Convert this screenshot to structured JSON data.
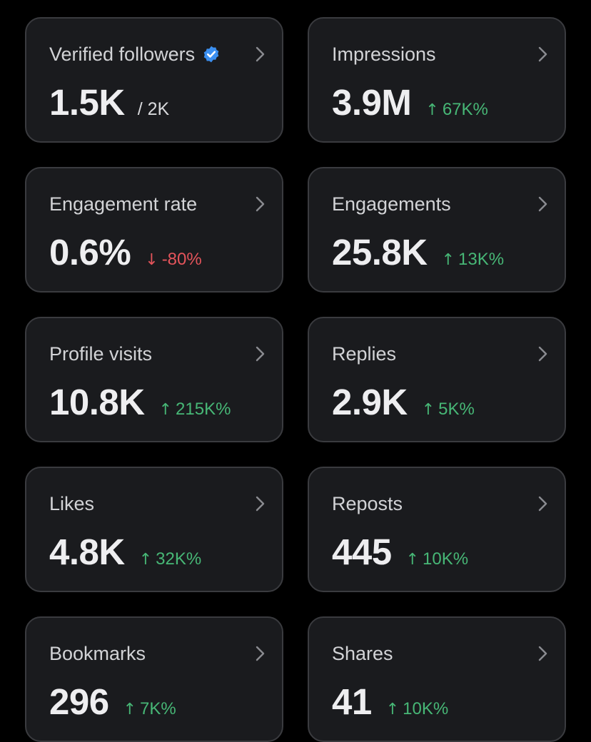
{
  "colors": {
    "background": "#000000",
    "card": "#1a1b1e",
    "card_border": "#3a3b3f",
    "positive": "#47b776",
    "negative": "#e4545b",
    "verified": "#3b8ff0"
  },
  "cards": [
    {
      "label": "Verified followers",
      "value": "1.5K",
      "sub": "/ 2K",
      "icon": "verified-badge-icon"
    },
    {
      "label": "Impressions",
      "value": "3.9M",
      "change": "67K%",
      "direction": "up",
      "arrow": "↑"
    },
    {
      "label": "Engagement rate",
      "value": "0.6%",
      "change": "-80%",
      "direction": "down",
      "arrow": "↓"
    },
    {
      "label": "Engagements",
      "value": "25.8K",
      "change": "13K%",
      "direction": "up",
      "arrow": "↑"
    },
    {
      "label": "Profile visits",
      "value": "10.8K",
      "change": "215K%",
      "direction": "up",
      "arrow": "↑"
    },
    {
      "label": "Replies",
      "value": "2.9K",
      "change": "5K%",
      "direction": "up",
      "arrow": "↑"
    },
    {
      "label": "Likes",
      "value": "4.8K",
      "change": "32K%",
      "direction": "up",
      "arrow": "↑"
    },
    {
      "label": "Reposts",
      "value": "445",
      "change": "10K%",
      "direction": "up",
      "arrow": "↑"
    },
    {
      "label": "Bookmarks",
      "value": "296",
      "change": "7K%",
      "direction": "up",
      "arrow": "↑"
    },
    {
      "label": "Shares",
      "value": "41",
      "change": "10K%",
      "direction": "up",
      "arrow": "↑"
    }
  ]
}
